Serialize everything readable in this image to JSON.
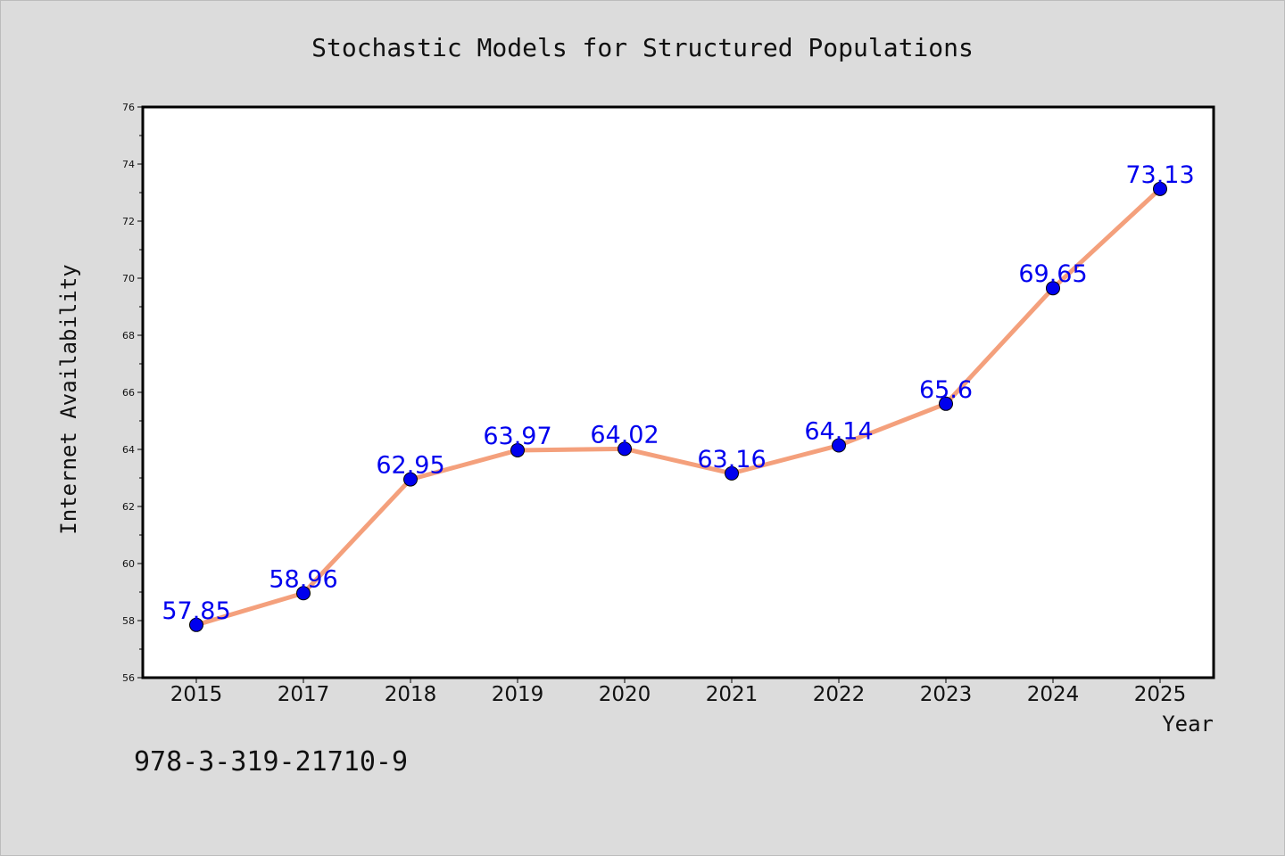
{
  "chart_data": {
    "type": "line",
    "title": "Stochastic Models for Structured Populations",
    "xlabel": "Year",
    "ylabel": "Internet Availability",
    "categories": [
      "2015",
      "2017",
      "2018",
      "2019",
      "2020",
      "2021",
      "2022",
      "2023",
      "2024",
      "2025"
    ],
    "series": [
      {
        "values": [
          57.85,
          58.96,
          62.95,
          63.97,
          64.02,
          63.16,
          64.14,
          65.6,
          69.65,
          73.13
        ],
        "data_labels": [
          "57.85",
          "58.96",
          "62.95",
          "63.97",
          "64.02",
          "63.16",
          "64.14",
          "65.6",
          "69.65",
          "73.13"
        ]
      }
    ],
    "ylim": [
      56,
      76
    ],
    "y_ticks": [
      "56",
      "58",
      "60",
      "62",
      "64",
      "66",
      "68",
      "70",
      "72",
      "74",
      "76"
    ],
    "grid": false,
    "legend": "none",
    "colors": {
      "line": "#f4a07c",
      "marker": "#0000ee",
      "data_label": "#0000ee",
      "background": "#dcdcdc",
      "plot_background": "#ffffff"
    }
  },
  "annotation": "978-3-319-21710-9"
}
